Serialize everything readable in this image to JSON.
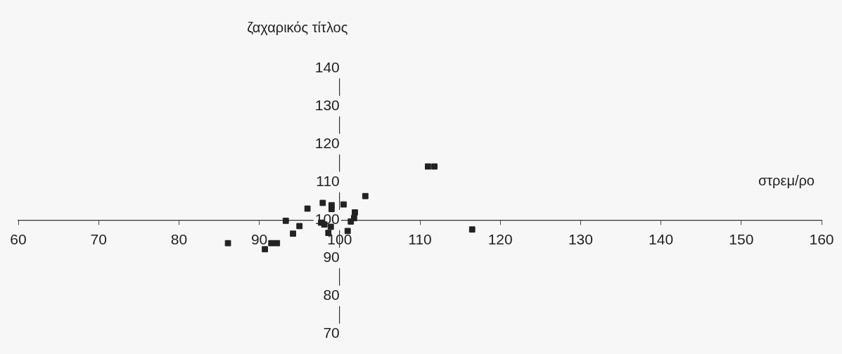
{
  "chart_data": {
    "type": "scatter",
    "xlabel": "στρεμ/ρο",
    "ylabel": "ζαχαρικός τίτλος",
    "x": [
      103.2,
      96.0,
      97.9,
      99.0,
      99.0,
      100.5,
      101.9,
      101.8,
      101.4,
      93.3,
      95.0,
      94.2,
      97.7,
      98.1,
      98.9,
      98.6,
      101.0,
      86.1,
      91.5,
      92.2,
      90.7,
      111.0,
      111.8,
      116.5
    ],
    "series": [
      {
        "color": "#222222",
        "values": [
          106.3,
          103.0,
          104.5,
          103.9,
          102.9,
          104.1,
          102.0,
          100.5,
          99.6,
          99.8,
          98.4,
          96.4,
          99.3,
          98.8,
          98.2,
          96.6,
          97.1,
          93.9,
          93.9,
          93.9,
          92.3,
          114.1,
          114.1,
          97.5
        ]
      }
    ],
    "xlim": [
      60,
      160
    ],
    "xticks": [
      60,
      70,
      80,
      90,
      100,
      110,
      120,
      130,
      140,
      150,
      160
    ],
    "ylim": [
      70,
      140
    ],
    "yticks": [
      70,
      80,
      90,
      100,
      110,
      120,
      130,
      140
    ],
    "grid": false,
    "legend": false,
    "marker": "square"
  }
}
